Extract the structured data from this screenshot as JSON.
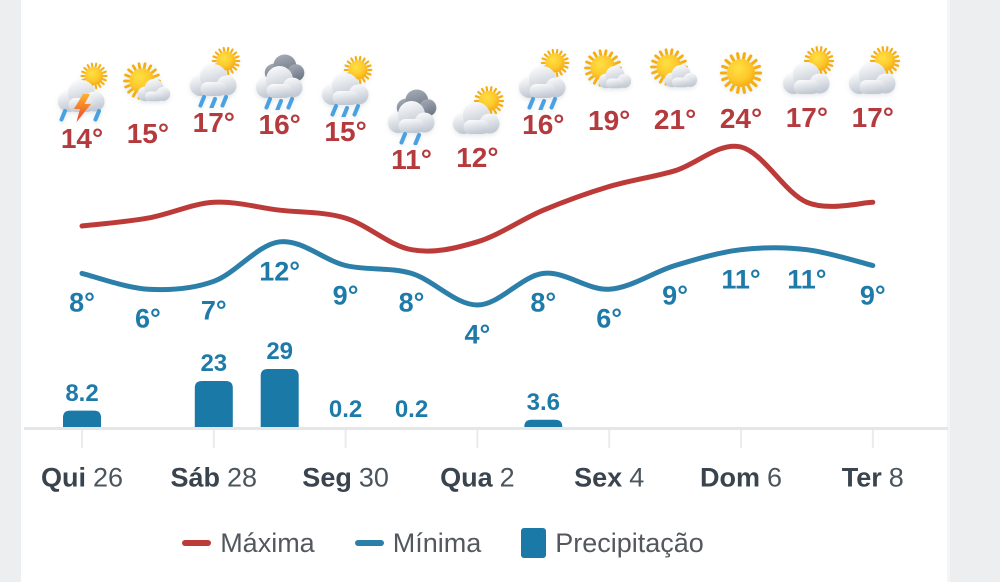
{
  "page": {
    "background": "#eceef0",
    "card_background": "#ffffff"
  },
  "chart_data": {
    "type": "line+bar",
    "title": "",
    "x_labels": [
      {
        "weekday": "Qui",
        "day": "26"
      },
      {
        "weekday": "Sáb",
        "day": "28"
      },
      {
        "weekday": "Seg",
        "day": "30"
      },
      {
        "weekday": "Qua",
        "day": "2"
      },
      {
        "weekday": "Sex",
        "day": "4"
      },
      {
        "weekday": "Dom",
        "day": "6"
      },
      {
        "weekday": "Ter",
        "day": "8"
      }
    ],
    "tick_indices": [
      0,
      2,
      4,
      6,
      8,
      10,
      12
    ],
    "icons": [
      "storm-sun",
      "mostly-sunny",
      "rain-sun",
      "rain-clouds",
      "rain-sun",
      "rain-cloud",
      "partly-cloudy",
      "rain-sun",
      "mostly-sunny",
      "mostly-sunny",
      "sunny",
      "partly-cloudy",
      "partly-cloudy"
    ],
    "series": [
      {
        "name": "Máxima",
        "type": "line",
        "color": "#bc3a38",
        "unit": "°",
        "values": [
          14,
          15,
          17,
          16,
          15,
          11,
          12,
          16,
          19,
          21,
          24,
          17,
          17
        ]
      },
      {
        "name": "Mínima",
        "type": "line",
        "color": "#2b7fa9",
        "unit": "°",
        "values": [
          8,
          6,
          7,
          12,
          9,
          8,
          4,
          8,
          6,
          9,
          11,
          11,
          9
        ]
      },
      {
        "name": "Precipitação",
        "type": "bar",
        "color": "#1b79a8",
        "values": [
          8.2,
          null,
          23,
          29,
          0.2,
          0.2,
          null,
          3.6,
          null,
          null,
          null,
          null,
          null
        ]
      }
    ],
    "legend": [
      {
        "label": "Máxima",
        "swatch": "line",
        "color": "#bc3a38"
      },
      {
        "label": "Mínima",
        "swatch": "line",
        "color": "#2b7fa9"
      },
      {
        "label": "Precipitação",
        "swatch": "square",
        "color": "#1b79a8"
      }
    ],
    "axis": {
      "line_color": "#e4e6e8",
      "tick_color": "#e9ebed",
      "grid": false,
      "legend_position": "bottom"
    }
  }
}
